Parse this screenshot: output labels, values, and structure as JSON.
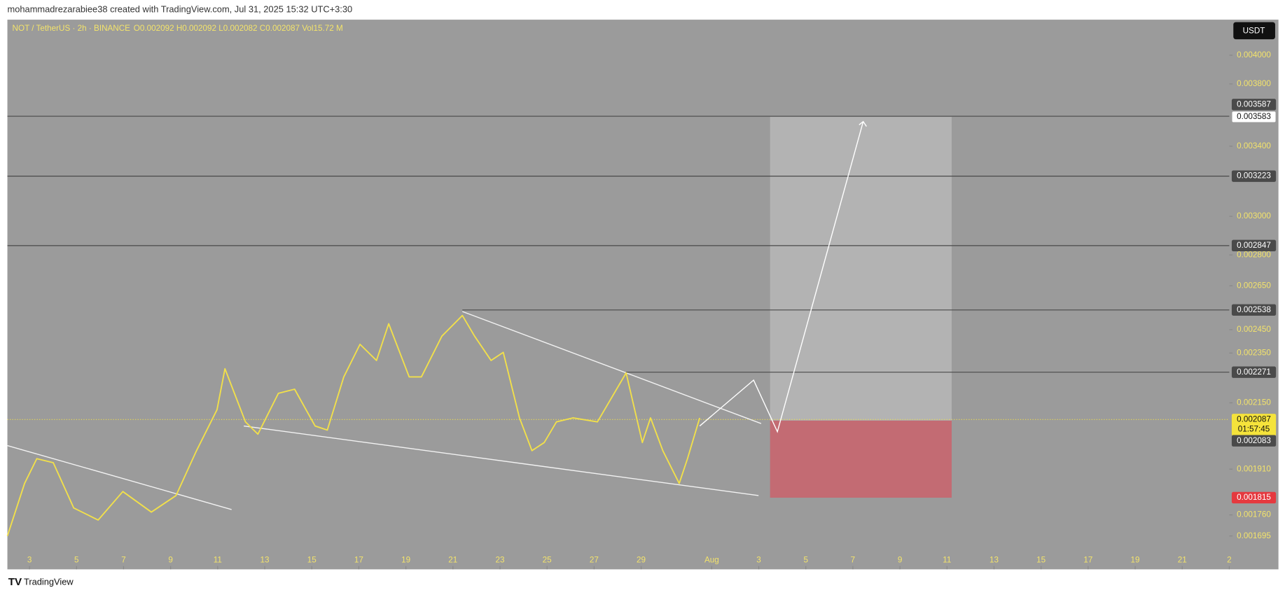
{
  "header": {
    "credit": "mohammadrezarabiee38 created with TradingView.com, Jul 31, 2025 15:32 UTC+3:30",
    "logo": "TradingView"
  },
  "chart_data": {
    "type": "line",
    "title": "NOT / TetherUS · 2h · BINANCE",
    "ohlc": "O0.002092 H0.002092 L0.002082 C0.002087 Vol15.72 M",
    "currency": "USDT",
    "color": "#f2e04a",
    "log": true,
    "x": [
      1.06,
      1.79,
      2.31,
      3.01,
      3.88,
      4.92,
      5.97,
      7.18,
      8.23,
      9.1,
      9.97,
      10.31,
      11.18,
      11.71,
      12.58,
      13.27,
      14.14,
      14.66,
      15.36,
      16.05,
      16.75,
      17.27,
      18.14,
      18.66,
      19.53,
      20.4,
      20.92,
      21.62,
      22.14,
      22.83,
      23.36,
      23.88,
      24.4,
      25.1,
      26.14,
      27.36,
      28.05,
      28.4,
      28.92,
      29.62,
      29.97,
      30.49
    ],
    "values": [
      0.001695,
      0.001862,
      0.001946,
      0.001932,
      0.001782,
      0.001744,
      0.001835,
      0.001769,
      0.001822,
      0.001974,
      0.002124,
      0.002285,
      0.002078,
      0.002033,
      0.002187,
      0.002203,
      0.002063,
      0.002048,
      0.002252,
      0.002387,
      0.002319,
      0.002476,
      0.002252,
      0.002252,
      0.002422,
      0.002513,
      0.002422,
      0.002319,
      0.002353,
      0.002093,
      0.001974,
      0.002003,
      0.002078,
      0.002093,
      0.002078,
      0.002268,
      0.002003,
      0.002093,
      0.001974,
      0.001862,
      0.001946,
      0.002093
    ],
    "xlim": [
      1.06,
      53
    ],
    "xticks": [
      {
        "value": 2,
        "label": "3"
      },
      {
        "value": 4,
        "label": "5"
      },
      {
        "value": 6,
        "label": "7"
      },
      {
        "value": 8,
        "label": "9"
      },
      {
        "value": 10,
        "label": "11"
      },
      {
        "value": 12,
        "label": "13"
      },
      {
        "value": 14,
        "label": "15"
      },
      {
        "value": 16,
        "label": "17"
      },
      {
        "value": 18,
        "label": "19"
      },
      {
        "value": 20,
        "label": "21"
      },
      {
        "value": 22,
        "label": "23"
      },
      {
        "value": 24,
        "label": "25"
      },
      {
        "value": 26,
        "label": "27"
      },
      {
        "value": 28,
        "label": "29"
      },
      {
        "value": 31,
        "label": "Aug"
      },
      {
        "value": 33,
        "label": "3"
      },
      {
        "value": 35,
        "label": "5"
      },
      {
        "value": 37,
        "label": "7"
      },
      {
        "value": 39,
        "label": "9"
      },
      {
        "value": 41,
        "label": "11"
      },
      {
        "value": 43,
        "label": "13"
      },
      {
        "value": 45,
        "label": "15"
      },
      {
        "value": 47,
        "label": "17"
      },
      {
        "value": 49,
        "label": "19"
      },
      {
        "value": 51,
        "label": "21"
      },
      {
        "value": 53,
        "label": "2"
      }
    ],
    "ylim": [
      0.001597,
      0.004262
    ],
    "yticks": [
      {
        "value": 0.004,
        "label": "0.004000"
      },
      {
        "value": 0.0038,
        "label": "0.003800"
      },
      {
        "value": 0.0034,
        "label": "0.003400"
      },
      {
        "value": 0.003,
        "label": "0.003000"
      },
      {
        "value": 0.0028,
        "label": "0.002800"
      },
      {
        "value": 0.00265,
        "label": "0.002650"
      },
      {
        "value": 0.00245,
        "label": "0.002450"
      },
      {
        "value": 0.00235,
        "label": "0.002350"
      },
      {
        "value": 0.00215,
        "label": "0.002150"
      },
      {
        "value": 0.00191,
        "label": "0.001910"
      },
      {
        "value": 0.00176,
        "label": "0.001760"
      },
      0.001695
    ],
    "hlines": [
      {
        "value": 0.003587
      },
      {
        "value": 0.003223
      },
      {
        "value": 0.002847
      },
      {
        "value": 0.002538,
        "from": 20.4
      },
      {
        "value": 0.002271,
        "from": 27.36
      }
    ],
    "last_price": 0.002087,
    "countdown": "01:57:45",
    "position": {
      "from": 33.48,
      "to": 41.2,
      "entry": 0.002083,
      "target": 0.003583,
      "stop": 0.001815
    },
    "trend_lines": [
      [
        [
          1.06,
          0.001992
        ],
        [
          10.59,
          0.001777
        ]
      ],
      [
        [
          20.4,
          0.002531
        ],
        [
          33.1,
          0.002072
        ]
      ],
      [
        [
          11.11,
          0.002063
        ],
        [
          32.99,
          0.001822
        ]
      ]
    ],
    "projection": {
      "x": [
        30.49,
        32.78,
        33.79,
        37.44
      ],
      "values": [
        0.002063,
        0.002239,
        0.002042,
        0.003553
      ]
    }
  }
}
